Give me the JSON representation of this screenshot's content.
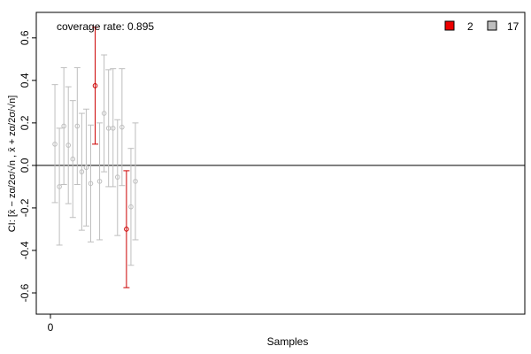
{
  "chart_data": {
    "type": "errorbar",
    "annotation": "coverage rate: 0.895",
    "xlabel": "Samples",
    "ylabel": "CI: [x̄ − zα/2σ/√n , x̄ + zα/2σ/√n]",
    "x_ticks": [
      0
    ],
    "y_ticks": [
      -0.6,
      -0.4,
      -0.2,
      0.0,
      0.2,
      0.4,
      0.6
    ],
    "y_tick_labels": [
      "-0.6",
      "-0.4",
      "-0.2",
      "0.0",
      "0.2",
      "0.4",
      "0.6"
    ],
    "xlim": [
      -1,
      100
    ],
    "ylim": [
      -0.7,
      0.72
    ],
    "reference_line": 0,
    "grid": false,
    "legend": {
      "placement": "top-right",
      "entries": [
        {
          "label": "2",
          "color": "#ee0000",
          "border": "#000000"
        },
        {
          "label": "17",
          "color": "#bebebe",
          "border": "#000000"
        }
      ]
    },
    "colors": {
      "covered": "#bebebe",
      "missed": "#cc0000",
      "missed_point": "#ee0000"
    },
    "samples": [
      {
        "x": 1,
        "center": 0.1,
        "lower": -0.175,
        "upper": 0.38,
        "covers": true
      },
      {
        "x": 2,
        "center": -0.1,
        "lower": -0.375,
        "upper": 0.175,
        "covers": true
      },
      {
        "x": 3,
        "center": 0.185,
        "lower": -0.09,
        "upper": 0.46,
        "covers": true
      },
      {
        "x": 4,
        "center": 0.095,
        "lower": -0.18,
        "upper": 0.37,
        "covers": true
      },
      {
        "x": 5,
        "center": 0.03,
        "lower": -0.245,
        "upper": 0.305,
        "covers": true
      },
      {
        "x": 6,
        "center": 0.185,
        "lower": -0.09,
        "upper": 0.46,
        "covers": true
      },
      {
        "x": 7,
        "center": -0.03,
        "lower": -0.305,
        "upper": 0.245,
        "covers": true
      },
      {
        "x": 8,
        "center": -0.01,
        "lower": -0.285,
        "upper": 0.265,
        "covers": true
      },
      {
        "x": 9,
        "center": -0.085,
        "lower": -0.36,
        "upper": 0.19,
        "covers": true
      },
      {
        "x": 10,
        "center": 0.375,
        "lower": 0.1,
        "upper": 0.65,
        "covers": false
      },
      {
        "x": 11,
        "center": -0.075,
        "lower": -0.35,
        "upper": 0.2,
        "covers": true
      },
      {
        "x": 12,
        "center": 0.245,
        "lower": -0.03,
        "upper": 0.52,
        "covers": true
      },
      {
        "x": 13,
        "center": 0.175,
        "lower": -0.1,
        "upper": 0.45,
        "covers": true
      },
      {
        "x": 14,
        "center": 0.175,
        "lower": -0.1,
        "upper": 0.455,
        "covers": true
      },
      {
        "x": 15,
        "center": -0.055,
        "lower": -0.33,
        "upper": 0.215,
        "covers": true
      },
      {
        "x": 16,
        "center": 0.18,
        "lower": -0.095,
        "upper": 0.455,
        "covers": true
      },
      {
        "x": 17,
        "center": -0.3,
        "lower": -0.575,
        "upper": -0.025,
        "covers": false
      },
      {
        "x": 18,
        "center": -0.195,
        "lower": -0.47,
        "upper": 0.08,
        "covers": true
      },
      {
        "x": 19,
        "center": -0.075,
        "lower": -0.35,
        "upper": 0.2,
        "covers": true
      }
    ]
  }
}
